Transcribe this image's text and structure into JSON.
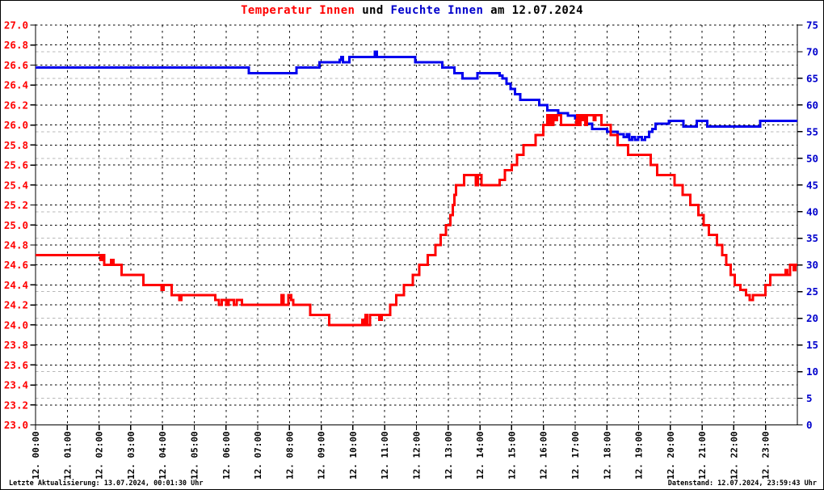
{
  "title": {
    "part1": "Temperatur Innen",
    "part2": " und ",
    "part3": "Feuchte Innen",
    "part4": " am 12.07.2024"
  },
  "footer": {
    "left": "Letzte Aktualisierung: 13.07.2024, 00:01:30 Uhr",
    "right": "Datenstand: 12.07.2024, 23:59:43 Uhr"
  },
  "colors": {
    "temperature": "#ff0000",
    "humidity": "#0000ee",
    "grid_major": "#000000",
    "grid_minor": "#b8b8b8",
    "axis": "#000000",
    "left_labels": "#ff0000",
    "right_labels": "#0000cc",
    "x_labels": "#000000",
    "background": "#ffffff"
  },
  "chart_data": {
    "type": "line",
    "title": "Temperatur Innen und Feuchte Innen am 12.07.2024",
    "grid": "on",
    "x_axis": {
      "unit": "time",
      "range_minutes": [
        0,
        1440
      ],
      "tick_interval_minutes": 60,
      "tick_labels": [
        "12. 00:00",
        "12. 01:00",
        "12. 02:00",
        "12. 03:00",
        "12. 04:00",
        "12. 05:00",
        "12. 06:00",
        "12. 07:00",
        "12. 08:00",
        "12. 09:00",
        "12. 10:00",
        "12. 11:00",
        "12. 12:00",
        "12. 13:00",
        "12. 14:00",
        "12. 15:00",
        "12. 16:00",
        "12. 17:00",
        "12. 18:00",
        "12. 19:00",
        "12. 20:00",
        "12. 21:00",
        "12. 22:00",
        "12. 23:00"
      ]
    },
    "y_left": {
      "name": "Temperatur Innen",
      "min": 23.0,
      "max": 27.0,
      "tick_step": 0.2,
      "tick_labels": [
        "27.0",
        "26.8",
        "26.6",
        "26.4",
        "26.2",
        "26.0",
        "25.8",
        "25.6",
        "25.4",
        "25.2",
        "25.0",
        "24.8",
        "24.6",
        "24.4",
        "24.2",
        "24.0",
        "23.8",
        "23.6",
        "23.4",
        "23.2",
        "23.0"
      ]
    },
    "y_right": {
      "name": "Feuchte Innen",
      "min": 0,
      "max": 75,
      "tick_step": 5,
      "tick_labels": [
        "75",
        "70",
        "65",
        "60",
        "55",
        "50",
        "45",
        "40",
        "35",
        "30",
        "25",
        "20",
        "15",
        "10",
        "5",
        "0"
      ]
    },
    "series": [
      {
        "name": "Feuchte Innen",
        "axis": "right",
        "color": "#0000ee",
        "step": true,
        "points": [
          [
            0,
            67
          ],
          [
            403,
            66
          ],
          [
            493,
            67
          ],
          [
            537,
            68
          ],
          [
            575,
            68.5
          ],
          [
            578,
            69
          ],
          [
            581,
            68
          ],
          [
            593,
            69
          ],
          [
            641,
            70
          ],
          [
            645,
            69
          ],
          [
            718,
            68
          ],
          [
            769,
            67
          ],
          [
            792,
            66
          ],
          [
            807,
            65
          ],
          [
            835,
            66
          ],
          [
            877,
            65.5
          ],
          [
            883,
            65
          ],
          [
            890,
            64
          ],
          [
            898,
            63
          ],
          [
            906,
            62
          ],
          [
            916,
            61
          ],
          [
            952,
            60
          ],
          [
            967,
            59
          ],
          [
            988,
            58.5
          ],
          [
            1006,
            58
          ],
          [
            1020,
            57.5
          ],
          [
            1040,
            56.5
          ],
          [
            1052,
            55.5
          ],
          [
            1080,
            55
          ],
          [
            1100,
            54.5
          ],
          [
            1112,
            54
          ],
          [
            1118,
            54.5
          ],
          [
            1122,
            53.5
          ],
          [
            1128,
            54
          ],
          [
            1133,
            53.5
          ],
          [
            1139,
            54
          ],
          [
            1146,
            53.5
          ],
          [
            1152,
            54
          ],
          [
            1160,
            55
          ],
          [
            1166,
            55.5
          ],
          [
            1172,
            56.5
          ],
          [
            1197,
            57
          ],
          [
            1225,
            56
          ],
          [
            1250,
            57
          ],
          [
            1270,
            56
          ],
          [
            1370,
            57
          ]
        ]
      },
      {
        "name": "Temperatur Innen",
        "axis": "left",
        "color": "#ff0000",
        "step": true,
        "points": [
          [
            0,
            24.7
          ],
          [
            123,
            24.65
          ],
          [
            127,
            24.7
          ],
          [
            130,
            24.6
          ],
          [
            143,
            24.65
          ],
          [
            147,
            24.6
          ],
          [
            163,
            24.5
          ],
          [
            204,
            24.4
          ],
          [
            238,
            24.35
          ],
          [
            242,
            24.4
          ],
          [
            257,
            24.3
          ],
          [
            272,
            24.25
          ],
          [
            276,
            24.3
          ],
          [
            340,
            24.25
          ],
          [
            347,
            24.2
          ],
          [
            352,
            24.25
          ],
          [
            360,
            24.2
          ],
          [
            365,
            24.25
          ],
          [
            375,
            24.2
          ],
          [
            380,
            24.25
          ],
          [
            390,
            24.2
          ],
          [
            465,
            24.3
          ],
          [
            469,
            24.2
          ],
          [
            478,
            24.3
          ],
          [
            483,
            24.25
          ],
          [
            487,
            24.2
          ],
          [
            519,
            24.1
          ],
          [
            555,
            24.0
          ],
          [
            618,
            24.05
          ],
          [
            621,
            24.0
          ],
          [
            624,
            24.1
          ],
          [
            627,
            24.0
          ],
          [
            632,
            24.1
          ],
          [
            650,
            24.05
          ],
          [
            654,
            24.1
          ],
          [
            670,
            24.2
          ],
          [
            682,
            24.3
          ],
          [
            696,
            24.4
          ],
          [
            713,
            24.5
          ],
          [
            725,
            24.6
          ],
          [
            741,
            24.7
          ],
          [
            756,
            24.8
          ],
          [
            766,
            24.9
          ],
          [
            776,
            25.0
          ],
          [
            784,
            25.1
          ],
          [
            789,
            25.2
          ],
          [
            792,
            25.3
          ],
          [
            795,
            25.4
          ],
          [
            810,
            25.5
          ],
          [
            832,
            25.4
          ],
          [
            836,
            25.5
          ],
          [
            843,
            25.4
          ],
          [
            877,
            25.45
          ],
          [
            887,
            25.55
          ],
          [
            900,
            25.6
          ],
          [
            910,
            25.7
          ],
          [
            922,
            25.8
          ],
          [
            945,
            25.9
          ],
          [
            960,
            26.0
          ],
          [
            967,
            26.1
          ],
          [
            970,
            26.0
          ],
          [
            973,
            26.1
          ],
          [
            976,
            26.0
          ],
          [
            979,
            26.1
          ],
          [
            982,
            26.05
          ],
          [
            986,
            26.1
          ],
          [
            993,
            26.0
          ],
          [
            1022,
            26.05
          ],
          [
            1024,
            26.1
          ],
          [
            1027,
            26.0
          ],
          [
            1030,
            26.1
          ],
          [
            1033,
            26.05
          ],
          [
            1036,
            26.1
          ],
          [
            1039,
            26.0
          ],
          [
            1042,
            26.1
          ],
          [
            1055,
            26.05
          ],
          [
            1058,
            26.1
          ],
          [
            1070,
            26.0
          ],
          [
            1087,
            25.9
          ],
          [
            1100,
            25.8
          ],
          [
            1120,
            25.7
          ],
          [
            1163,
            25.6
          ],
          [
            1175,
            25.5
          ],
          [
            1208,
            25.4
          ],
          [
            1223,
            25.3
          ],
          [
            1238,
            25.2
          ],
          [
            1253,
            25.1
          ],
          [
            1263,
            25.0
          ],
          [
            1273,
            24.9
          ],
          [
            1288,
            24.8
          ],
          [
            1298,
            24.7
          ],
          [
            1306,
            24.6
          ],
          [
            1314,
            24.5
          ],
          [
            1322,
            24.4
          ],
          [
            1332,
            24.35
          ],
          [
            1343,
            24.3
          ],
          [
            1350,
            24.25
          ],
          [
            1356,
            24.3
          ],
          [
            1380,
            24.4
          ],
          [
            1389,
            24.5
          ],
          [
            1418,
            24.55
          ],
          [
            1421,
            24.5
          ],
          [
            1426,
            24.6
          ],
          [
            1433,
            24.55
          ],
          [
            1436,
            24.6
          ]
        ]
      }
    ]
  }
}
